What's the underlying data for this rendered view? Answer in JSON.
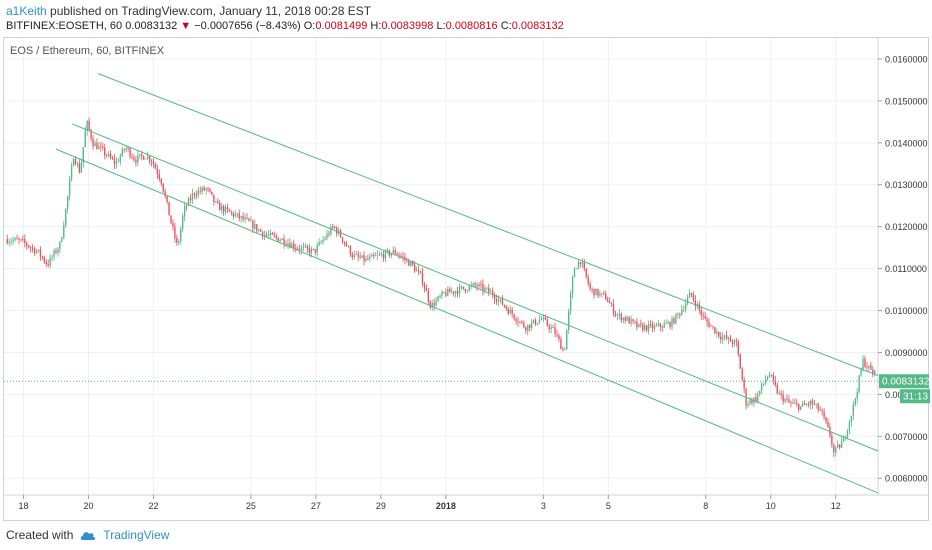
{
  "header": {
    "author": "a1Keith",
    "published_text": " published on TradingView.com, January 11, 2018 00:28 EST",
    "symbol": "BITFINEX:EOSETH, 60",
    "last": "0.0083132",
    "change_arrow": "▼",
    "change": "−0.0007656 (−8.43%)",
    "o_label": "O:",
    "o": "0.0081499",
    "h_label": "H:",
    "h": "0.0083998",
    "l_label": "L:",
    "l": "0.0080816",
    "c_label": "C:",
    "c": "0.0083132"
  },
  "footer": {
    "created_with": "Created with",
    "brand": "TradingView"
  },
  "chart_data": {
    "type": "candlestick",
    "title": "EOS / Ethereum, 60, BITFINEX",
    "ylim": [
      0.0056,
      0.0165
    ],
    "y_ticks": [
      "0.0060000",
      "0.0070000",
      "0.0080000",
      "0.0090000",
      "0.0100000",
      "0.0110000",
      "0.0120000",
      "0.0130000",
      "0.0140000",
      "0.0150000",
      "0.0160000"
    ],
    "x_ticks": [
      "18",
      "20",
      "22",
      "25",
      "27",
      "29",
      "2018",
      "3",
      "5",
      "8",
      "10",
      "12"
    ],
    "x_tick_days": [
      0,
      2,
      4,
      7,
      9,
      11,
      13,
      16,
      18,
      21,
      23,
      25
    ],
    "xlim_days": [
      -0.6,
      26.3
    ],
    "price_label": "0.0083132",
    "countdown_label": "31:13",
    "up_color": "#53b987",
    "down_color": "#eb4d5c",
    "channel_color": "#53b987",
    "channel_lines": [
      {
        "start": [
          2.3,
          0.01565
        ],
        "end": [
          26.3,
          0.00845
        ]
      },
      {
        "start": [
          1.5,
          0.01445
        ],
        "end": [
          26.3,
          0.00665
        ]
      },
      {
        "start": [
          1.0,
          0.01385
        ],
        "end": [
          26.3,
          0.00565
        ]
      }
    ],
    "price_path": [
      [
        -0.5,
        0.0117
      ],
      [
        0,
        0.01165
      ],
      [
        0.5,
        0.0114
      ],
      [
        0.8,
        0.0111
      ],
      [
        1.2,
        0.0116
      ],
      [
        1.4,
        0.0126
      ],
      [
        1.6,
        0.0137
      ],
      [
        1.8,
        0.0133
      ],
      [
        2.0,
        0.0145
      ],
      [
        2.2,
        0.014
      ],
      [
        2.5,
        0.0138
      ],
      [
        2.9,
        0.0135
      ],
      [
        3.2,
        0.0139
      ],
      [
        3.5,
        0.0136
      ],
      [
        3.8,
        0.0137
      ],
      [
        4.0,
        0.0136
      ],
      [
        4.3,
        0.0131
      ],
      [
        4.6,
        0.0121
      ],
      [
        4.8,
        0.0115
      ],
      [
        5.0,
        0.0124
      ],
      [
        5.3,
        0.0128
      ],
      [
        5.7,
        0.0129
      ],
      [
        6.0,
        0.0125
      ],
      [
        6.5,
        0.0123
      ],
      [
        7.0,
        0.0121
      ],
      [
        7.5,
        0.0118
      ],
      [
        8.0,
        0.0117
      ],
      [
        8.5,
        0.0115
      ],
      [
        9.0,
        0.0114
      ],
      [
        9.3,
        0.0117
      ],
      [
        9.6,
        0.012
      ],
      [
        9.8,
        0.0118
      ],
      [
        10.2,
        0.0113
      ],
      [
        10.6,
        0.0112
      ],
      [
        11.0,
        0.0113
      ],
      [
        11.5,
        0.0114
      ],
      [
        12.0,
        0.0111
      ],
      [
        12.3,
        0.0108
      ],
      [
        12.6,
        0.0101
      ],
      [
        13.0,
        0.0104
      ],
      [
        13.5,
        0.0105
      ],
      [
        14.0,
        0.0106
      ],
      [
        14.5,
        0.0104
      ],
      [
        15.0,
        0.01
      ],
      [
        15.5,
        0.0096
      ],
      [
        16.0,
        0.0098
      ],
      [
        16.4,
        0.0095
      ],
      [
        16.7,
        0.009
      ],
      [
        17.0,
        0.011
      ],
      [
        17.2,
        0.0112
      ],
      [
        17.5,
        0.0105
      ],
      [
        18.0,
        0.0103
      ],
      [
        18.3,
        0.0099
      ],
      [
        18.6,
        0.0098
      ],
      [
        19.0,
        0.0096
      ],
      [
        19.5,
        0.0096
      ],
      [
        20.0,
        0.0097
      ],
      [
        20.3,
        0.01
      ],
      [
        20.6,
        0.0104
      ],
      [
        21.0,
        0.0098
      ],
      [
        21.5,
        0.0094
      ],
      [
        22.0,
        0.0092
      ],
      [
        22.3,
        0.0078
      ],
      [
        22.6,
        0.0079
      ],
      [
        23.0,
        0.0085
      ],
      [
        23.3,
        0.008
      ],
      [
        23.6,
        0.0078
      ],
      [
        24.0,
        0.0077
      ],
      [
        24.3,
        0.0078
      ],
      [
        24.6,
        0.0076
      ],
      [
        24.9,
        0.007
      ],
      [
        25.0,
        0.0066
      ],
      [
        25.3,
        0.0069
      ],
      [
        25.6,
        0.0077
      ],
      [
        25.9,
        0.0088
      ],
      [
        26.2,
        0.0085
      ]
    ]
  }
}
